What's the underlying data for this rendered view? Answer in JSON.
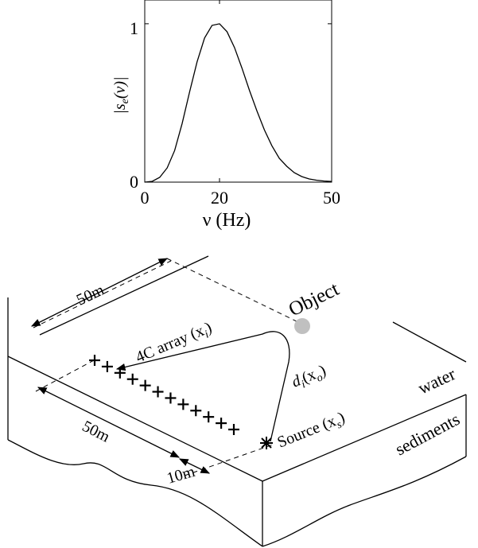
{
  "chart_data": {
    "type": "line",
    "xlabel": "ν (Hz)",
    "ylabel": "|s_e(ν)|",
    "xlim": [
      0,
      50
    ],
    "ylim": [
      0,
      1.15
    ],
    "xticks": [
      "0",
      "20",
      "50"
    ],
    "yticks": [
      "0",
      "1"
    ],
    "grid": false,
    "series": [
      {
        "x": [
          0,
          2,
          4,
          6,
          8,
          10,
          12,
          14,
          16,
          18,
          20,
          22,
          24,
          26,
          28,
          30,
          32,
          34,
          36,
          38,
          40,
          42,
          44,
          46,
          48,
          50
        ],
        "values": [
          0,
          0.005,
          0.03,
          0.09,
          0.2,
          0.37,
          0.57,
          0.76,
          0.91,
          0.99,
          1.0,
          0.95,
          0.85,
          0.72,
          0.58,
          0.45,
          0.33,
          0.23,
          0.15,
          0.1,
          0.06,
          0.035,
          0.02,
          0.012,
          0.007,
          0.004
        ]
      }
    ]
  },
  "diagram": {
    "dim_top": "50m",
    "dim_left": "50m",
    "dim_small": "10m",
    "label_object": "Object",
    "label_array": "4C array (x",
    "label_array_sub": "i",
    "label_distance": "d",
    "label_distance_sub": "i",
    "label_distance_arg": "(x",
    "label_distance_arg_sub": "o",
    "label_source": "Source (x",
    "label_source_sub": "s",
    "label_water": "water",
    "label_sediments": "sediments",
    "receiver_symbol": "+",
    "receiver_count": 12,
    "colors": {
      "object": "#c0c0c0",
      "ink": "#000000"
    }
  }
}
